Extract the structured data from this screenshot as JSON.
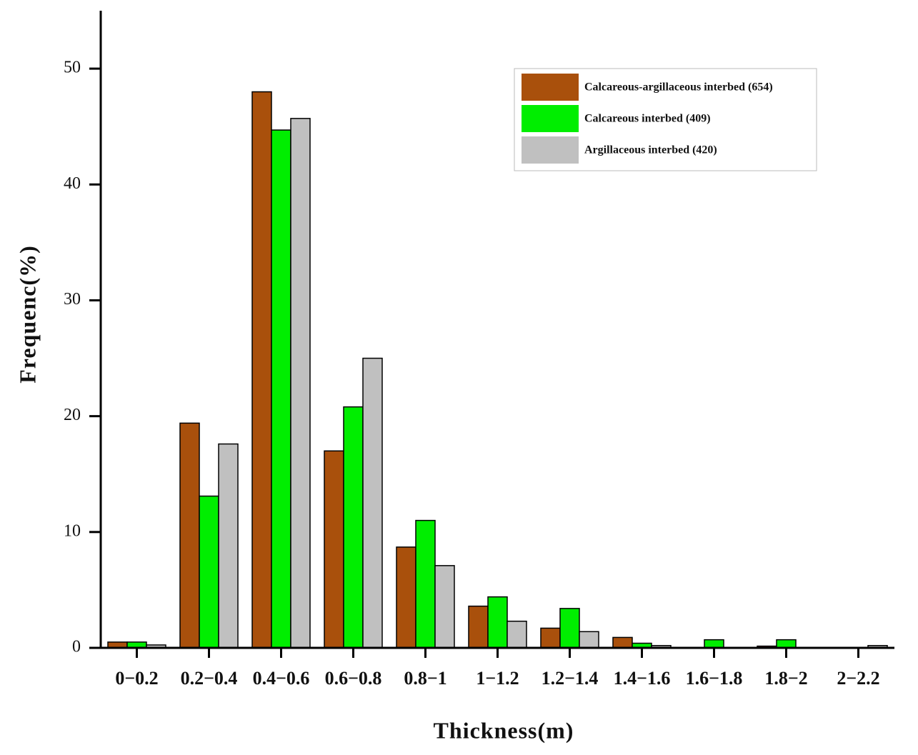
{
  "chart_data": {
    "type": "bar",
    "x_label": "Thickness(m)",
    "y_label": "Frequenc(%)",
    "categories": [
      "0−0.2",
      "0.2−0.4",
      "0.4−0.6",
      "0.6−0.8",
      "0.8−1",
      "1−1.2",
      "1.2−1.4",
      "1.4−1.6",
      "1.6−1.8",
      "1.8−2",
      "2−2.2"
    ],
    "series": [
      {
        "name": "Calcareous-argillaceous interbed (654)",
        "color": "#a9500c",
        "values": [
          0.5,
          19.4,
          48,
          17,
          8.7,
          3.6,
          1.7,
          0.9,
          0,
          0.15,
          0
        ]
      },
      {
        "name": "Calcareous interbed (409)",
        "color": "#00ee00",
        "values": [
          0.5,
          13.1,
          44.7,
          20.8,
          11,
          4.4,
          3.4,
          0.4,
          0.7,
          0.7,
          0
        ]
      },
      {
        "name": "Argillaceous interbed (420)",
        "color": "#c0c0c0",
        "values": [
          0.25,
          17.6,
          45.7,
          25,
          7.1,
          2.3,
          1.4,
          0.2,
          0,
          0,
          0.2
        ]
      }
    ],
    "ylim": [
      0,
      55
    ],
    "yticks": [
      0,
      10,
      20,
      30,
      40,
      50
    ],
    "legend": "upper right"
  }
}
